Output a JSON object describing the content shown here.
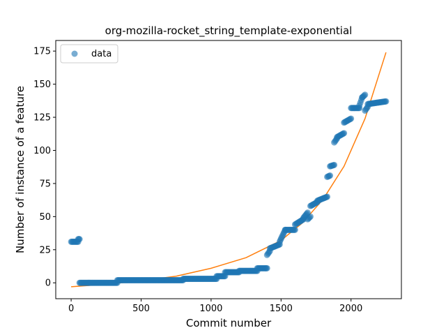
{
  "chart_data": {
    "type": "scatter",
    "title": "org-mozilla-rocket_string_template-exponential",
    "xlabel": "Commit number",
    "ylabel": "Number of instance of a feature",
    "xlim": [
      -110,
      2360
    ],
    "ylim": [
      -12,
      183
    ],
    "xticks": [
      0,
      500,
      1000,
      1500,
      2000
    ],
    "yticks": [
      0,
      25,
      50,
      75,
      100,
      125,
      150,
      175
    ],
    "legend": {
      "placement": "upper-left",
      "entries": [
        {
          "label": "data",
          "marker": "circle",
          "color": "#1f77b4"
        }
      ]
    },
    "colors": {
      "data": "#1f77b4",
      "fit": "#ff7f0e"
    },
    "series": [
      {
        "name": "data",
        "kind": "scatter",
        "segments": [
          {
            "x": [
              0,
              50
            ],
            "y": [
              31,
              31
            ]
          },
          {
            "x": [
              50,
              60
            ],
            "y": [
              33,
              33
            ]
          },
          {
            "x": [
              60,
              330
            ],
            "y": [
              0,
              0
            ]
          },
          {
            "x": [
              330,
              800
            ],
            "y": [
              2,
              2
            ]
          },
          {
            "x": [
              800,
              1040
            ],
            "y": [
              3,
              3
            ]
          },
          {
            "x": [
              1040,
              1100
            ],
            "y": [
              5,
              5
            ]
          },
          {
            "x": [
              1100,
              1200
            ],
            "y": [
              8,
              8
            ]
          },
          {
            "x": [
              1200,
              1330
            ],
            "y": [
              9,
              9
            ]
          },
          {
            "x": [
              1330,
              1400
            ],
            "y": [
              11,
              11
            ]
          },
          {
            "x": [
              1400,
              1420
            ],
            "y": [
              21,
              24
            ]
          },
          {
            "x": [
              1420,
              1490
            ],
            "y": [
              26,
              29
            ]
          },
          {
            "x": [
              1490,
              1530
            ],
            "y": [
              31,
              40
            ]
          },
          {
            "x": [
              1530,
              1600
            ],
            "y": [
              40,
              40
            ]
          },
          {
            "x": [
              1600,
              1660
            ],
            "y": [
              44,
              48
            ]
          },
          {
            "x": [
              1660,
              1690
            ],
            "y": [
              49,
              53
            ]
          },
          {
            "x": [
              1690,
              1710
            ],
            "y": [
              48,
              50
            ]
          },
          {
            "x": [
              1710,
              1760
            ],
            "y": [
              58,
              61
            ]
          },
          {
            "x": [
              1760,
              1830
            ],
            "y": [
              62,
              65
            ]
          },
          {
            "x": [
              1830,
              1850
            ],
            "y": [
              80,
              81
            ]
          },
          {
            "x": [
              1850,
              1880
            ],
            "y": [
              88,
              89
            ]
          },
          {
            "x": [
              1880,
              1900
            ],
            "y": [
              106,
              109
            ]
          },
          {
            "x": [
              1900,
              1950
            ],
            "y": [
              110,
              113
            ]
          },
          {
            "x": [
              1950,
              2000
            ],
            "y": [
              121,
              124
            ]
          },
          {
            "x": [
              2000,
              2060
            ],
            "y": [
              132,
              132
            ]
          },
          {
            "x": [
              2060,
              2080
            ],
            "y": [
              134,
              140
            ]
          },
          {
            "x": [
              2080,
              2100
            ],
            "y": [
              140,
              142
            ]
          },
          {
            "x": [
              2100,
              2120
            ],
            "y": [
              130,
              133
            ]
          },
          {
            "x": [
              2120,
              2250
            ],
            "y": [
              135,
              137
            ]
          }
        ]
      },
      {
        "name": "",
        "kind": "line",
        "x": [
          0,
          250,
          500,
          750,
          1000,
          1250,
          1500,
          1650,
          1800,
          1950,
          2100,
          2250
        ],
        "y": [
          -3,
          -1,
          1.5,
          5,
          11,
          19,
          32,
          45,
          63,
          88,
          124,
          174
        ]
      }
    ]
  }
}
